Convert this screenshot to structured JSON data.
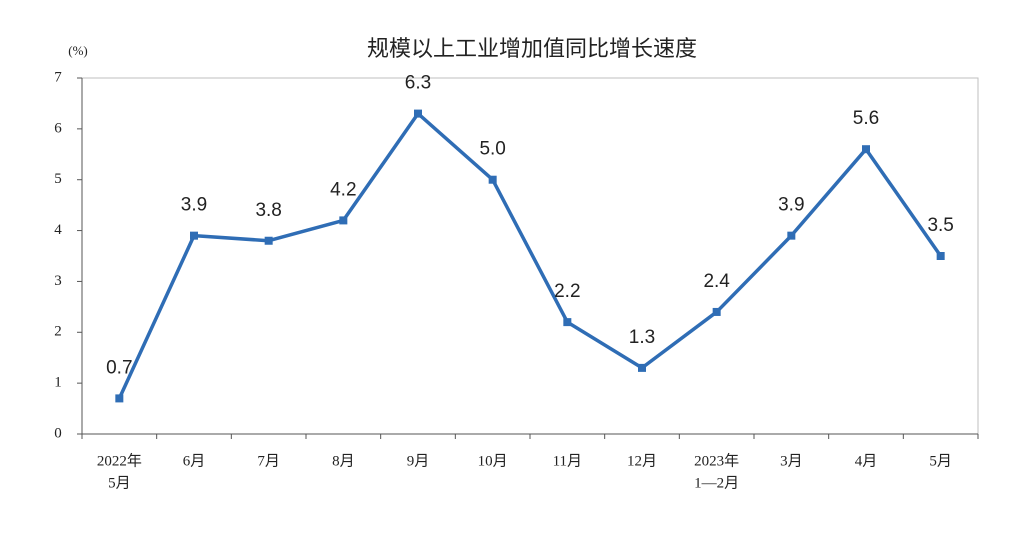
{
  "chart_data": {
    "type": "line",
    "title": "规模以上工业增加值同比增长速度",
    "y_label": "(%)",
    "categories": [
      [
        "2022年",
        "5月"
      ],
      [
        "6月"
      ],
      [
        "7月"
      ],
      [
        "8月"
      ],
      [
        "9月"
      ],
      [
        "10月"
      ],
      [
        "11月"
      ],
      [
        "12月"
      ],
      [
        "2023年",
        "1—2月"
      ],
      [
        "3月"
      ],
      [
        "4月"
      ],
      [
        "5月"
      ]
    ],
    "values": [
      0.7,
      3.9,
      3.8,
      4.2,
      6.3,
      5.0,
      2.2,
      1.3,
      2.4,
      3.9,
      5.6,
      3.5
    ],
    "value_labels": [
      "0.7",
      "3.9",
      "3.8",
      "4.2",
      "6.3",
      "5.0",
      "2.2",
      "1.3",
      "2.4",
      "3.9",
      "5.6",
      "3.5"
    ],
    "color": "#2f6db5",
    "ylim": [
      0,
      7
    ],
    "yticks": [
      0,
      1,
      2,
      3,
      4,
      5,
      6,
      7
    ]
  }
}
